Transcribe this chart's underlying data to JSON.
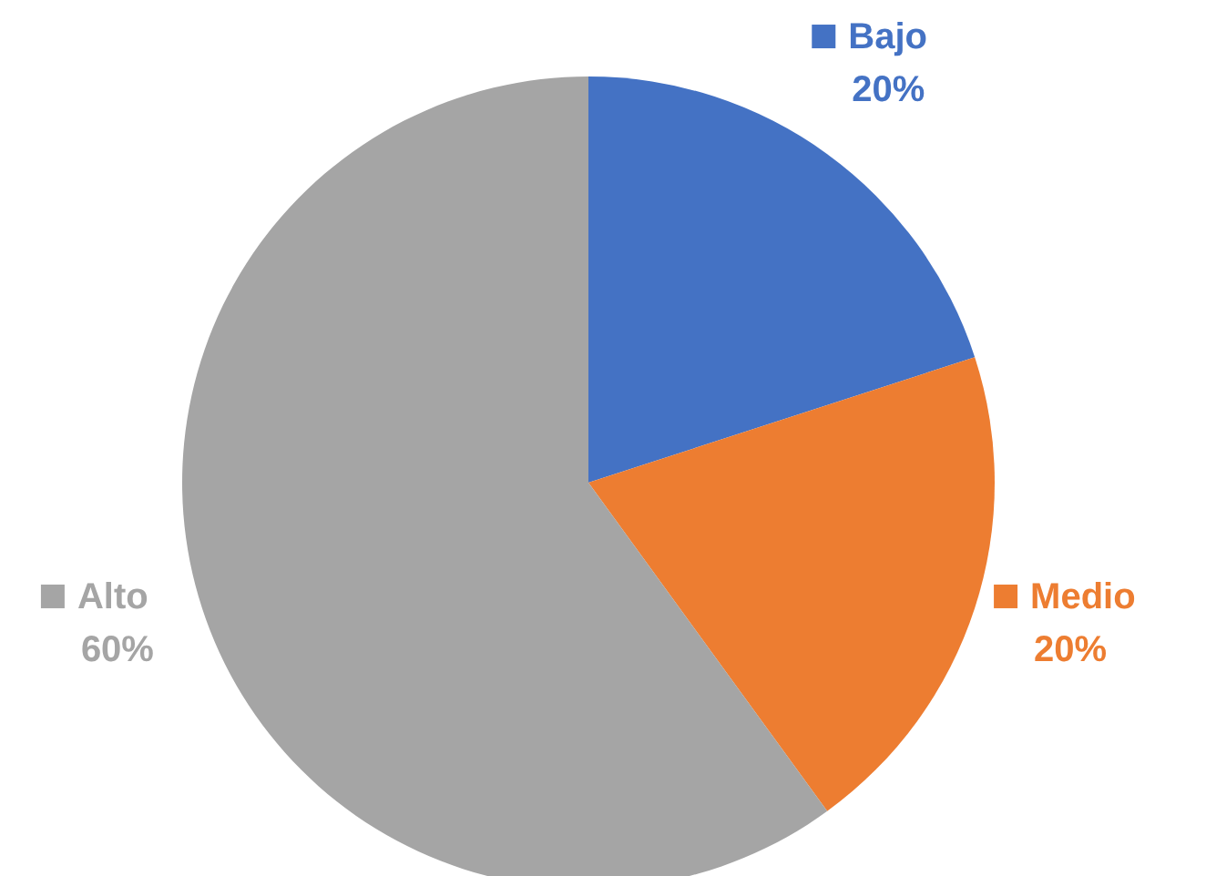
{
  "chart_data": {
    "type": "pie",
    "categories": [
      "Bajo",
      "Medio",
      "Alto"
    ],
    "values": [
      20,
      20,
      60
    ],
    "colors": [
      "#4472c4",
      "#ed7d31",
      "#a5a5a5"
    ],
    "value_labels": [
      "20%",
      "20%",
      "60%"
    ],
    "legend": "right"
  }
}
